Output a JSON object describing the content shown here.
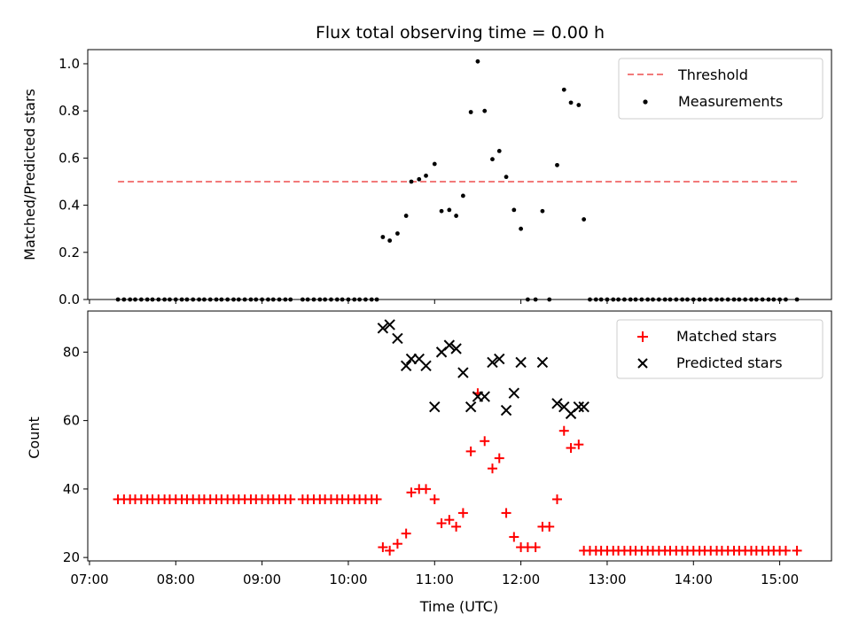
{
  "chart_data": [
    {
      "type": "scatter",
      "title": "Flux total observing time = 0.00 h",
      "xlabel": "",
      "ylabel": "Matched/Predicted stars",
      "ylim": [
        0,
        1.06
      ],
      "xlim_hours": [
        6.98,
        15.6
      ],
      "yticks": [
        0.0,
        0.2,
        0.4,
        0.6,
        0.8,
        1.0
      ],
      "ytick_labels": [
        "0.0",
        "0.2",
        "0.4",
        "0.6",
        "0.8",
        "1.0"
      ],
      "legend_position": "top-right",
      "legend": [
        "Threshold",
        "Measurements"
      ],
      "threshold": {
        "name": "Threshold",
        "value": 0.5,
        "x_start": 7.33,
        "x_end": 15.2,
        "color": "#f27a7a"
      },
      "measurements": {
        "name": "Measurements",
        "color": "#000000",
        "x": [
          7.33,
          7.4,
          7.47,
          7.53,
          7.6,
          7.67,
          7.73,
          7.8,
          7.87,
          7.93,
          8.0,
          8.07,
          8.13,
          8.2,
          8.27,
          8.33,
          8.4,
          8.47,
          8.53,
          8.6,
          8.67,
          8.73,
          8.8,
          8.87,
          8.93,
          9.0,
          9.07,
          9.13,
          9.2,
          9.27,
          9.33,
          9.47,
          9.53,
          9.6,
          9.67,
          9.73,
          9.8,
          9.87,
          9.93,
          10.0,
          10.07,
          10.13,
          10.2,
          10.27,
          10.33,
          10.4,
          10.48,
          10.57,
          10.67,
          10.73,
          10.82,
          10.9,
          11.0,
          11.08,
          11.17,
          11.25,
          11.33,
          11.42,
          11.5,
          11.58,
          11.67,
          11.75,
          11.83,
          11.92,
          12.0,
          12.08,
          12.17,
          12.25,
          12.33,
          12.42,
          12.5,
          12.58,
          12.67,
          12.73,
          12.8,
          12.87,
          12.93,
          13.0,
          13.07,
          13.13,
          13.2,
          13.27,
          13.33,
          13.4,
          13.47,
          13.53,
          13.6,
          13.67,
          13.73,
          13.8,
          13.87,
          13.93,
          14.0,
          14.07,
          14.13,
          14.2,
          14.27,
          14.33,
          14.4,
          14.47,
          14.53,
          14.6,
          14.67,
          14.73,
          14.8,
          14.87,
          14.93,
          15.0,
          15.07,
          15.2
        ],
        "y": [
          0,
          0,
          0,
          0,
          0,
          0,
          0,
          0,
          0,
          0,
          0,
          0,
          0,
          0,
          0,
          0,
          0,
          0,
          0,
          0,
          0,
          0,
          0,
          0,
          0,
          0,
          0,
          0,
          0,
          0,
          0,
          0,
          0,
          0,
          0,
          0,
          0,
          0,
          0,
          0,
          0,
          0,
          0,
          0,
          0,
          0.265,
          0.25,
          0.28,
          0.355,
          0.5,
          0.51,
          0.525,
          0.575,
          0.375,
          0.38,
          0.355,
          0.44,
          0.795,
          1.01,
          0.8,
          0.595,
          0.63,
          0.52,
          0.38,
          0.3,
          0,
          0,
          0.375,
          0,
          0.57,
          0.89,
          0.835,
          0.825,
          0.34,
          0,
          0,
          0,
          0,
          0,
          0,
          0,
          0,
          0,
          0,
          0,
          0,
          0,
          0,
          0,
          0,
          0,
          0,
          0,
          0,
          0,
          0,
          0,
          0,
          0,
          0,
          0,
          0,
          0,
          0,
          0,
          0,
          0,
          0,
          0,
          0
        ]
      }
    },
    {
      "type": "scatter",
      "title": "",
      "xlabel": "Time (UTC)",
      "ylabel": "Count",
      "ylim": [
        19,
        92
      ],
      "xlim_hours": [
        6.98,
        15.6
      ],
      "yticks": [
        20,
        40,
        60,
        80
      ],
      "ytick_labels": [
        "20",
        "40",
        "60",
        "80"
      ],
      "xticks_hours": [
        7,
        8,
        9,
        10,
        11,
        12,
        13,
        14,
        15
      ],
      "xtick_labels": [
        "07:00",
        "08:00",
        "09:00",
        "10:00",
        "11:00",
        "12:00",
        "13:00",
        "14:00",
        "15:00"
      ],
      "legend_position": "top-right",
      "legend": [
        "Matched stars",
        "Predicted stars"
      ],
      "series": [
        {
          "name": "Matched stars",
          "marker": "plus",
          "color": "#ff0000",
          "x": [
            7.33,
            7.4,
            7.47,
            7.53,
            7.6,
            7.67,
            7.73,
            7.8,
            7.87,
            7.93,
            8.0,
            8.07,
            8.13,
            8.2,
            8.27,
            8.33,
            8.4,
            8.47,
            8.53,
            8.6,
            8.67,
            8.73,
            8.8,
            8.87,
            8.93,
            9.0,
            9.07,
            9.13,
            9.2,
            9.27,
            9.33,
            9.47,
            9.53,
            9.6,
            9.67,
            9.73,
            9.8,
            9.87,
            9.93,
            10.0,
            10.07,
            10.13,
            10.2,
            10.27,
            10.33,
            10.4,
            10.48,
            10.57,
            10.67,
            10.73,
            10.82,
            10.9,
            11.0,
            11.08,
            11.17,
            11.25,
            11.33,
            11.42,
            11.5,
            11.58,
            11.67,
            11.75,
            11.83,
            11.92,
            12.0,
            12.08,
            12.17,
            12.25,
            12.33,
            12.42,
            12.5,
            12.58,
            12.67,
            12.73,
            12.8,
            12.87,
            12.93,
            13.0,
            13.07,
            13.13,
            13.2,
            13.27,
            13.33,
            13.4,
            13.47,
            13.53,
            13.6,
            13.67,
            13.73,
            13.8,
            13.87,
            13.93,
            14.0,
            14.07,
            14.13,
            14.2,
            14.27,
            14.33,
            14.4,
            14.47,
            14.53,
            14.6,
            14.67,
            14.73,
            14.8,
            14.87,
            14.93,
            15.0,
            15.07,
            15.2
          ],
          "values": [
            37,
            37,
            37,
            37,
            37,
            37,
            37,
            37,
            37,
            37,
            37,
            37,
            37,
            37,
            37,
            37,
            37,
            37,
            37,
            37,
            37,
            37,
            37,
            37,
            37,
            37,
            37,
            37,
            37,
            37,
            37,
            37,
            37,
            37,
            37,
            37,
            37,
            37,
            37,
            37,
            37,
            37,
            37,
            37,
            37,
            23,
            22,
            24,
            27,
            39,
            40,
            40,
            37,
            30,
            31,
            29,
            33,
            51,
            68,
            54,
            46,
            49,
            33,
            26,
            23,
            23,
            23,
            29,
            29,
            37,
            57,
            52,
            53,
            22,
            22,
            22,
            22,
            22,
            22,
            22,
            22,
            22,
            22,
            22,
            22,
            22,
            22,
            22,
            22,
            22,
            22,
            22,
            22,
            22,
            22,
            22,
            22,
            22,
            22,
            22,
            22,
            22,
            22,
            22,
            22,
            22,
            22,
            22,
            22,
            22
          ]
        },
        {
          "name": "Predicted stars",
          "marker": "x",
          "color": "#000000",
          "x": [
            10.4,
            10.48,
            10.57,
            10.67,
            10.73,
            10.82,
            10.9,
            11.0,
            11.08,
            11.17,
            11.25,
            11.33,
            11.42,
            11.5,
            11.58,
            11.67,
            11.75,
            11.83,
            11.92,
            12.0,
            12.25,
            12.42,
            12.5,
            12.58,
            12.67,
            12.73
          ],
          "values": [
            87,
            88,
            84,
            76,
            78,
            78,
            76,
            64,
            80,
            82,
            81,
            74,
            64,
            67,
            67,
            77,
            78,
            63,
            68,
            77,
            77,
            65,
            64,
            62,
            64,
            64
          ]
        }
      ]
    }
  ]
}
